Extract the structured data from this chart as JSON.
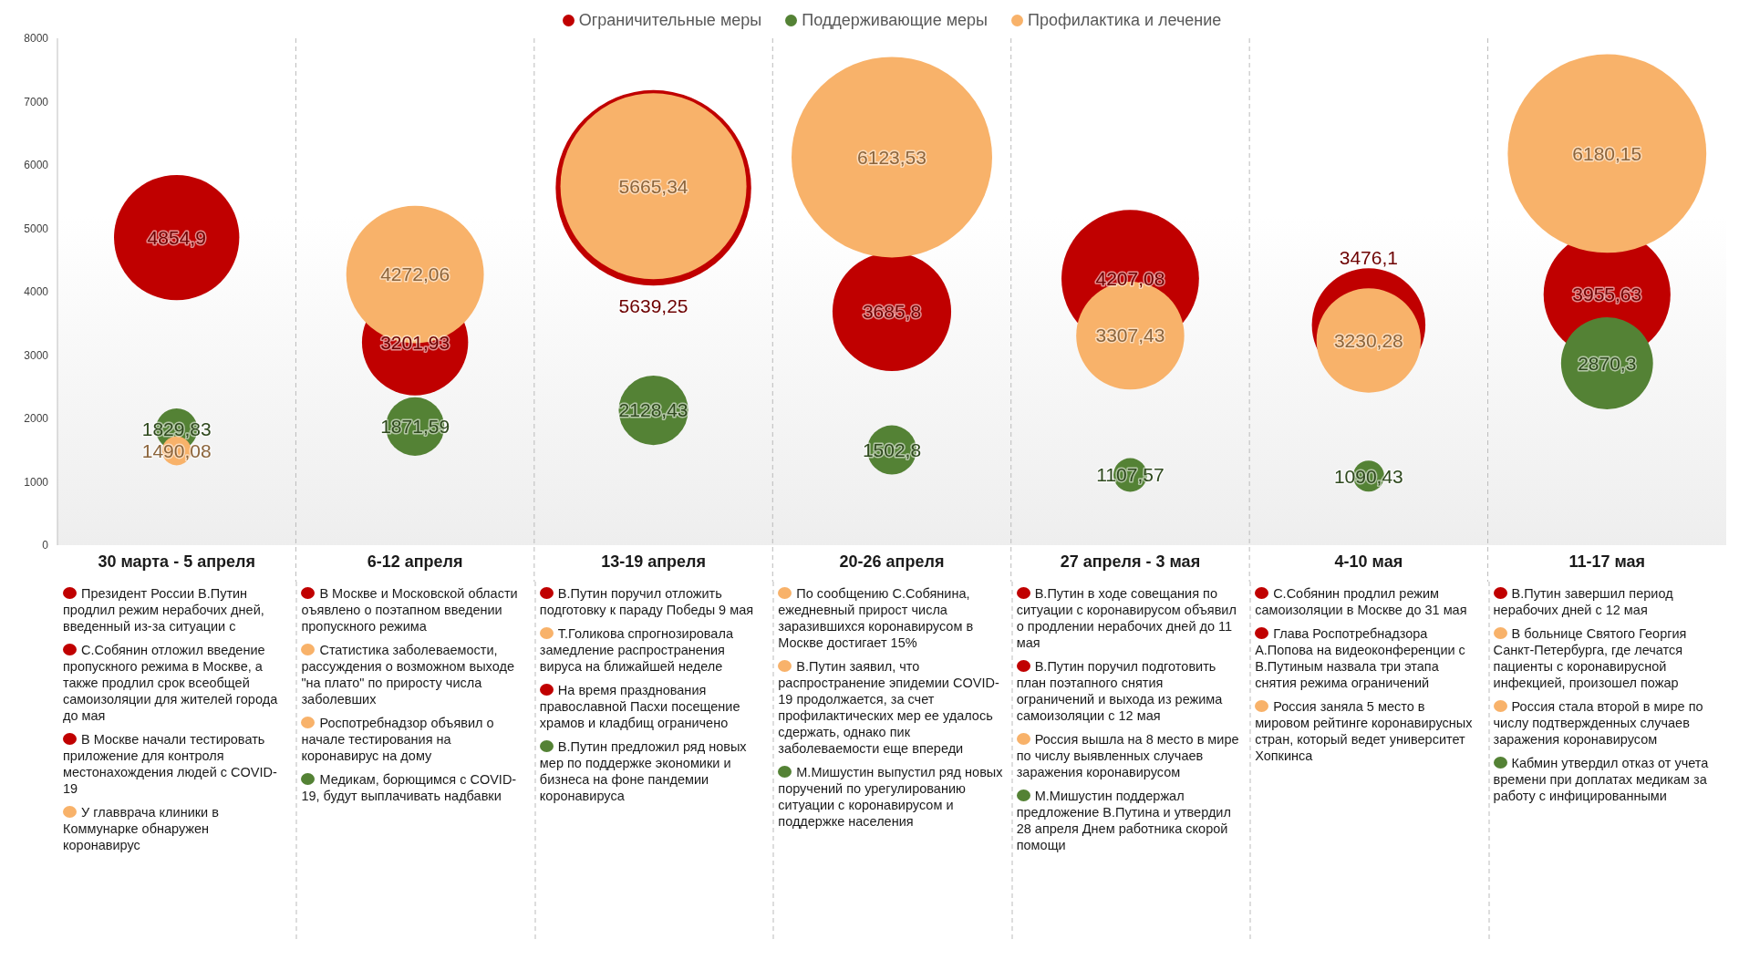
{
  "chart_data": [
    {
      "type": "bubble",
      "categories": [
        "30 марта - 5 апреля",
        "6-12 апреля",
        "13-19 апреля",
        "20-26 апреля",
        "27 апреля - 3 мая",
        "4-10 мая",
        "11-17 мая"
      ],
      "ylim": [
        0,
        8000
      ],
      "yticks": [
        0,
        1000,
        2000,
        3000,
        4000,
        5000,
        6000,
        7000,
        8000
      ],
      "grid": "x",
      "legend": "top",
      "series": [
        {
          "name": "Ограничительные меры",
          "color": "#c00000",
          "values": [
            4854.9,
            3201.93,
            5639.25,
            3685.8,
            4207.08,
            3476.1,
            3955.63
          ],
          "sizes": [
            0.39,
            0.28,
            0.95,
            0.35,
            0.47,
            0.32,
            0.4
          ],
          "value_labels": [
            "4854,9",
            "3201,93",
            "5639,25",
            "3685,8",
            "4207,08",
            "3476,1",
            "3955,63"
          ]
        },
        {
          "name": "Поддерживающие меры",
          "color": "#548235",
          "values": [
            1829.83,
            1871.59,
            2128.43,
            1502.8,
            1107.57,
            1090.43,
            2870.3
          ],
          "sizes": [
            0.043,
            0.085,
            0.12,
            0.06,
            0.028,
            0.024,
            0.21
          ],
          "value_labels": [
            "1829,83",
            "1871,59",
            "2128,43",
            "1502,8",
            "1107,57",
            "1090,43",
            "2870,3"
          ]
        },
        {
          "name": "Профилактика и лечение",
          "color": "#f8b26a",
          "values": [
            1490.08,
            4272.06,
            5665.34,
            6123.53,
            3307.43,
            3230.28,
            6180.15
          ],
          "sizes": [
            0.021,
            0.47,
            0.86,
            1,
            0.29,
            0.27,
            0.98
          ],
          "value_labels": [
            "1490,08",
            "4272,06",
            "5665,34",
            "6123,53",
            "3307,43",
            "3230,28",
            "6180,15"
          ]
        }
      ]
    },
    {
      "type": "other",
      "colors": [
        "#c00000",
        "#c00000",
        "#c00000",
        "#f8b26a"
      ],
      "annotations": [
        "Президент России В.Путин продлил режим нерабочих дней, введенный из-за ситуации с",
        "С.Собянин отложил введение пропускного режима в Москве, а также продлил срок всеобщей самоизоляции для жителей города до мая",
        "В Москве начали тестировать приложение для контроля местонахождения людей с COVID-19",
        "У главврача клиники в Коммунарке обнаружен коронавирус"
      ]
    },
    {
      "type": "other",
      "colors": [
        "#c00000",
        "#f8b26a",
        "#f8b26a",
        "#548235"
      ],
      "annotations": [
        "В Москве и Московской области оъявлено о поэтапном введении пропускного режима",
        "Статистика заболеваемости, рассуждения о возможном выходе \"на плато\" по приросту числа заболевших",
        "Роспотребнадзор объявил о начале тестирования на коронавирус на дому",
        "Медикам, борющимся с COVID-19, будут выплачивать надбавки"
      ]
    },
    {
      "type": "other",
      "colors": [
        "#c00000",
        "#f8b26a",
        "#c00000",
        "#548235"
      ],
      "annotations": [
        "В.Путин поручил отложить подготовку к параду Победы 9 мая",
        "Т.Голикова спрогнозировала замедление распространения вируса на ближайшей неделе",
        "На время празднования православной  Пасхи посещение храмов и кладбищ ограничено",
        "В.Путин предложил ряд новых мер по поддержке экономики и бизнеса на фоне пандемии коронавируса"
      ]
    },
    {
      "type": "other",
      "colors": [
        "#f8b26a",
        "#f8b26a",
        "#548235"
      ],
      "annotations": [
        "По сообщению С.Собянина, ежедневный прирост числа заразившихся коронавирусом в Москве достигает 15%",
        "В.Путин заявил, что распространение эпидемии COVID-19 продолжается, за счет профилактических мер ее удалось сдержать, однако пик заболеваемости еще впереди",
        "М.Мишустин выпустил ряд новых поручений по урегулированию ситуации с коронавирусом и поддержке населения"
      ]
    },
    {
      "type": "other",
      "colors": [
        "#c00000",
        "#c00000",
        "#f8b26a",
        "#548235"
      ],
      "annotations": [
        "В.Путин в ходе совещания по ситуации с коронавирусом объявил о продлении нерабочих дней до 11 мая",
        "В.Путин поручил подготовить план поэтапного снятия ограничений и выхода из режима самоизоляции с 12 мая",
        "Россия вышла на 8 место в мире по числу выявленных случаев заражения коронавирусом",
        "М.Мишустин поддержал предложение В.Путина и утвердил 28 апреля Днем работника скорой помощи"
      ]
    },
    {
      "type": "other",
      "colors": [
        "#c00000",
        "#c00000",
        "#f8b26a"
      ],
      "annotations": [
        "С.Собянин продлил режим самоизоляции в Москве до 31 мая",
        "Глава Роспотребнадзора А.Попова на видеоконференции с В.Путиным назвала три этапа снятия режима ограничений",
        "Россия заняла 5 место в мировом рейтинге коронавирусных стран, который ведет университет Хопкинса"
      ]
    },
    {
      "type": "other",
      "colors": [
        "#c00000",
        "#f8b26a",
        "#f8b26a",
        "#548235"
      ],
      "annotations": [
        "В.Путин завершил период нерабочих дней с 12 мая",
        "В больнице Святого Георгия Санкт-Петербурга, где лечатся пациенты с коронавирусной инфекцией, произошел пожар",
        "Россия стала второй в мире по числу подтвержденных случаев заражения коронавирусом",
        "Кабмин утвердил отказ от учета времени при доплатах медикам за работу с инфицированными"
      ]
    }
  ]
}
